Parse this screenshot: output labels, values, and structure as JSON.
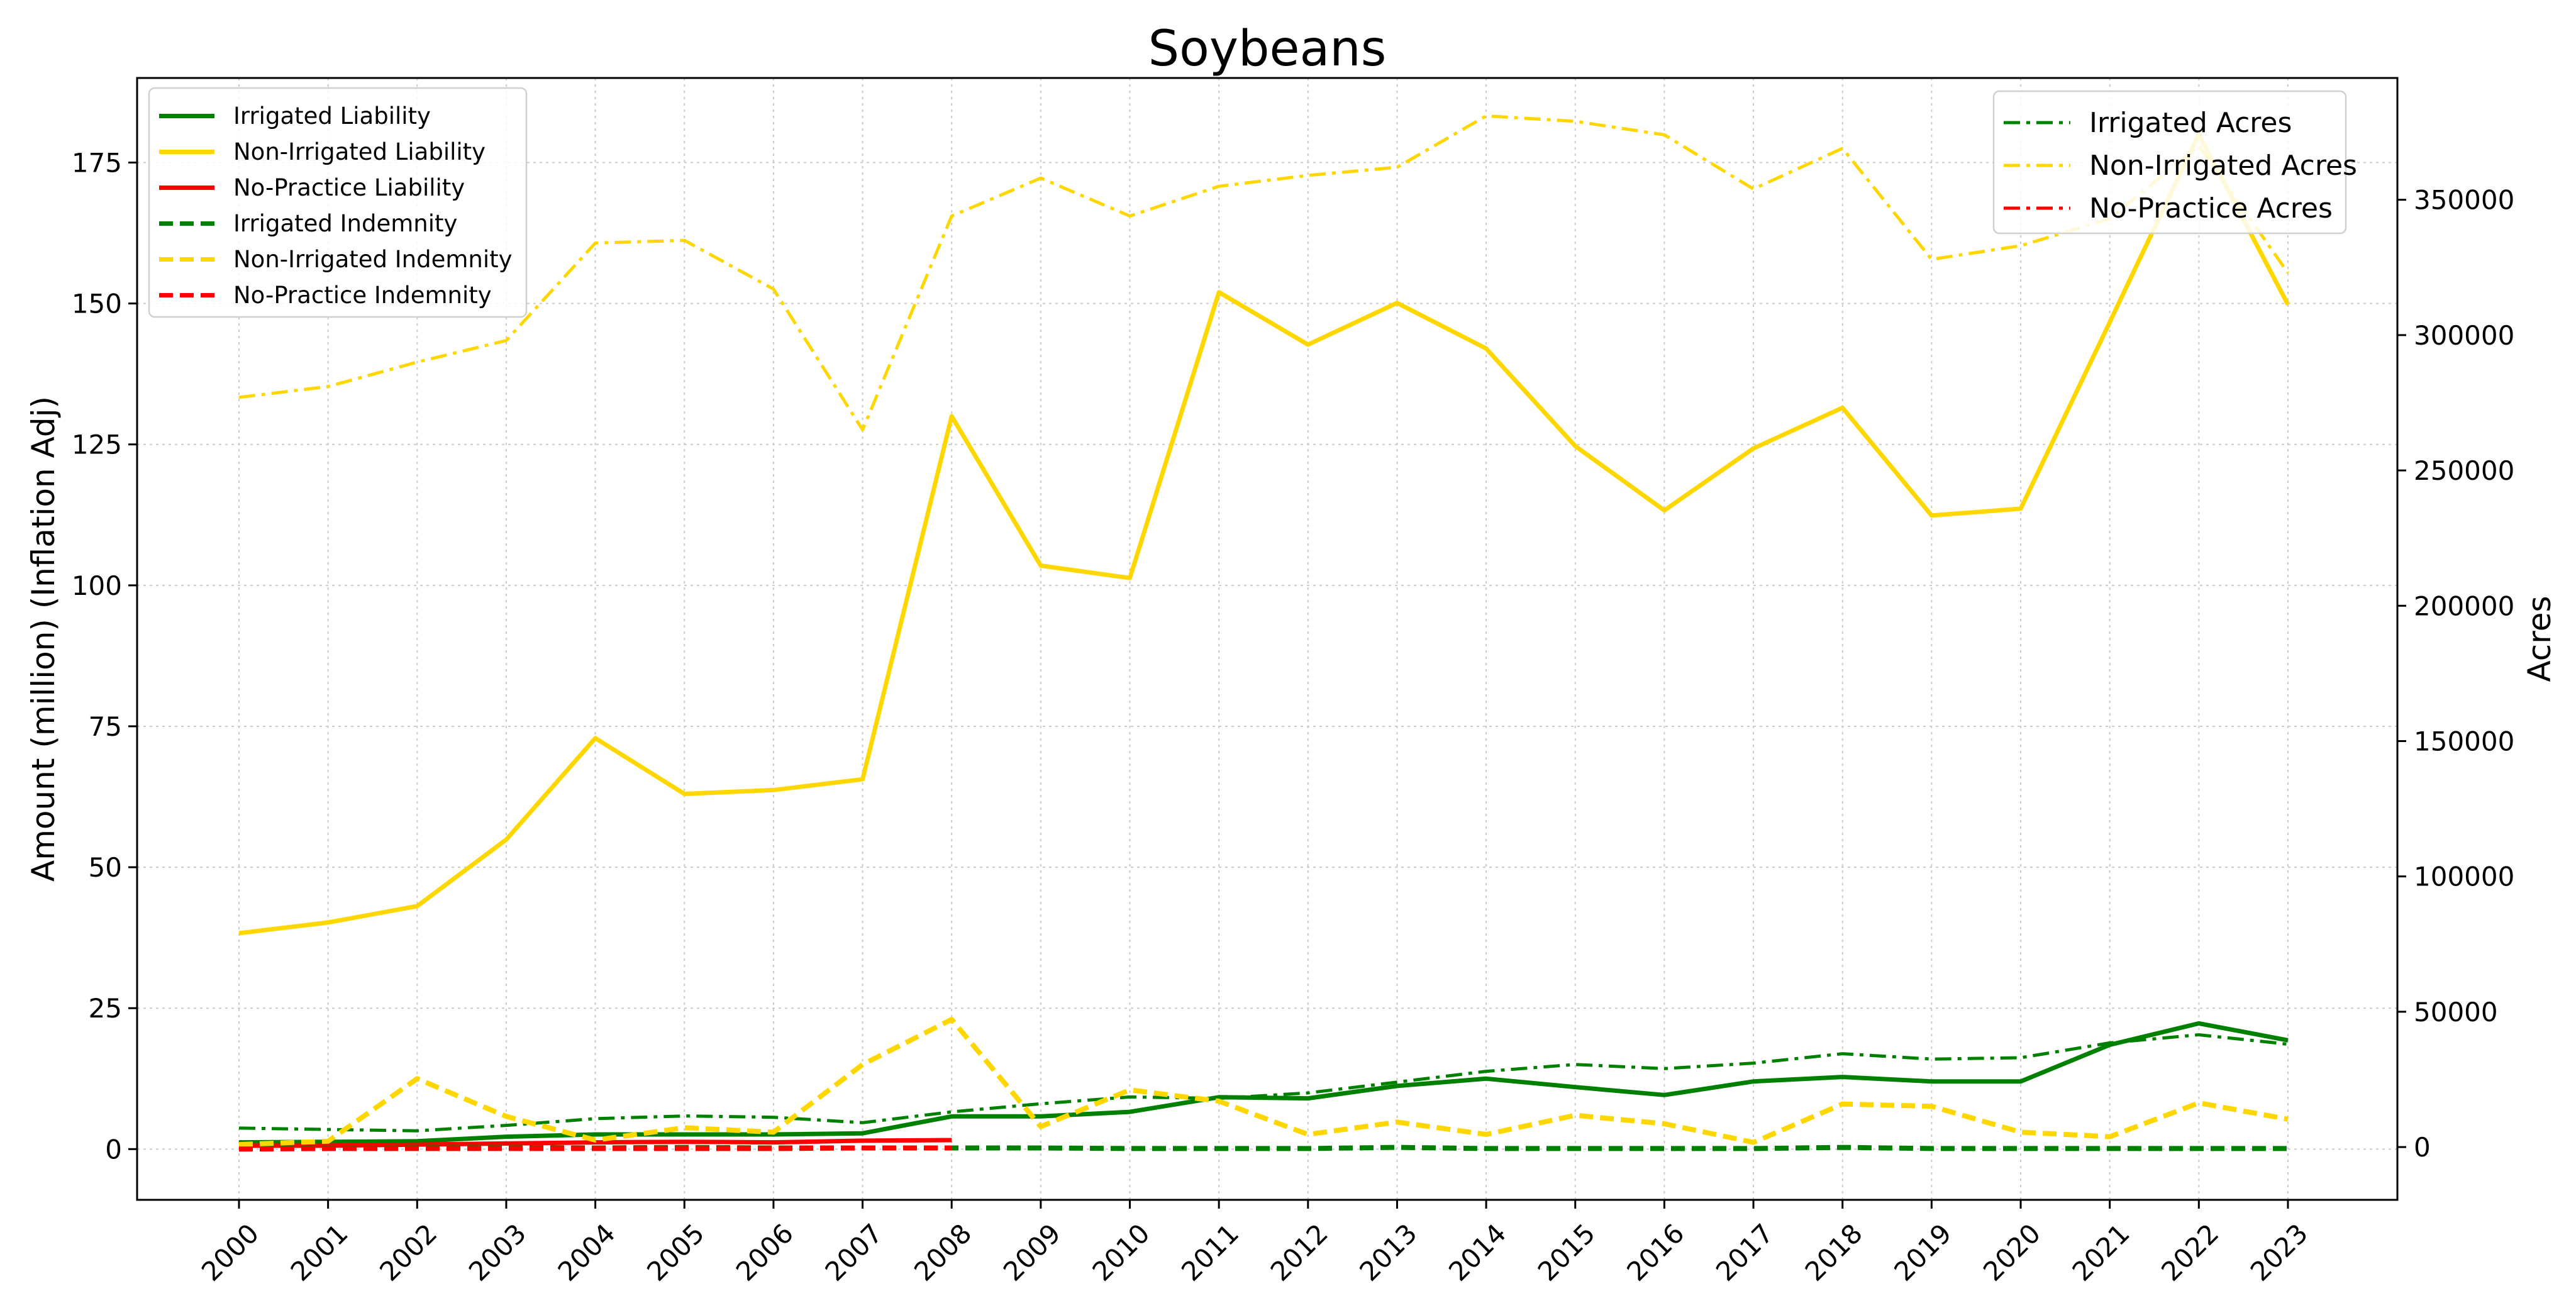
{
  "chart_data": {
    "type": "line",
    "title": "Soybeans",
    "ylabel_left": "Amount (million) (Inflation Adj)",
    "ylabel_right": "Acres",
    "xlabel": "",
    "ylim_left": [
      -9,
      190
    ],
    "ylim_right": [
      -19500,
      395000
    ],
    "x_ticks": [
      2000,
      2001,
      2002,
      2003,
      2004,
      2005,
      2006,
      2007,
      2008,
      2009,
      2010,
      2011,
      2012,
      2013,
      2014,
      2015,
      2016,
      2017,
      2018,
      2019,
      2020,
      2021,
      2022,
      2023
    ],
    "y_ticks_left": [
      0,
      25,
      50,
      75,
      100,
      125,
      150,
      175
    ],
    "y_ticks_right": [
      0,
      50000,
      100000,
      150000,
      200000,
      250000,
      300000,
      350000
    ],
    "grid": true,
    "legend_left_placement": "upper-left",
    "legend_right_placement": "upper-right",
    "series_left": [
      {
        "name": "Irrigated Liability",
        "color": "#008000",
        "dash": "solid",
        "x": [
          2000,
          2001,
          2002,
          2003,
          2004,
          2005,
          2006,
          2007,
          2008,
          2009,
          2010,
          2011,
          2012,
          2013,
          2014,
          2015,
          2016,
          2017,
          2018,
          2019,
          2020,
          2021,
          2022,
          2023
        ],
        "values": [
          1.2,
          1.3,
          1.4,
          2.2,
          2.6,
          2.6,
          2.6,
          2.8,
          5.8,
          5.8,
          6.6,
          9.2,
          9.0,
          11.2,
          12.5,
          11.0,
          9.6,
          12.0,
          12.8,
          12.0,
          12.0,
          18.5,
          22.3,
          19.3
        ]
      },
      {
        "name": "Non-Irrigated Liability",
        "color": "#FFD700",
        "dash": "solid",
        "x": [
          2000,
          2001,
          2002,
          2003,
          2004,
          2005,
          2006,
          2007,
          2008,
          2009,
          2010,
          2011,
          2012,
          2013,
          2014,
          2015,
          2016,
          2017,
          2018,
          2019,
          2020,
          2021,
          2022,
          2023
        ],
        "values": [
          38.3,
          40.2,
          43.1,
          54.9,
          72.9,
          63.0,
          63.7,
          65.6,
          130.0,
          103.5,
          101.3,
          152.0,
          142.7,
          150.1,
          142.0,
          124.7,
          113.3,
          124.3,
          131.5,
          112.4,
          113.6,
          146.7,
          180.0,
          149.8
        ]
      },
      {
        "name": "No-Practice Liability",
        "color": "#FF0000",
        "dash": "solid",
        "x": [
          2000,
          2001,
          2002,
          2003,
          2004,
          2005,
          2006,
          2007,
          2008
        ],
        "values": [
          0.6,
          0.6,
          0.8,
          1.0,
          1.2,
          1.3,
          1.2,
          1.5,
          1.6
        ]
      },
      {
        "name": "Irrigated Indemnity",
        "color": "#008000",
        "dash": "dashed",
        "x": [
          2000,
          2001,
          2002,
          2003,
          2004,
          2005,
          2006,
          2007,
          2008,
          2009,
          2010,
          2011,
          2012,
          2013,
          2014,
          2015,
          2016,
          2017,
          2018,
          2019,
          2020,
          2021,
          2022,
          2023
        ],
        "values": [
          0.1,
          0.2,
          0.3,
          0.3,
          0.2,
          0.3,
          0.2,
          0.2,
          0.2,
          0.2,
          0.1,
          0.1,
          0.1,
          0.3,
          0.1,
          0.1,
          0.1,
          0.1,
          0.3,
          0.1,
          0.1,
          0.1,
          0.1,
          0.1
        ]
      },
      {
        "name": "Non-Irrigated Indemnity",
        "color": "#FFD700",
        "dash": "dashed",
        "x": [
          2000,
          2001,
          2002,
          2003,
          2004,
          2005,
          2006,
          2007,
          2008,
          2009,
          2010,
          2011,
          2012,
          2013,
          2014,
          2015,
          2016,
          2017,
          2018,
          2019,
          2020,
          2021,
          2022,
          2023
        ],
        "values": [
          0.8,
          1.4,
          12.5,
          5.8,
          1.6,
          3.8,
          3.0,
          15.0,
          23.0,
          4.0,
          10.5,
          8.5,
          2.6,
          4.8,
          2.6,
          6.0,
          4.5,
          1.2,
          8.0,
          7.6,
          3.0,
          2.2,
          8.2,
          5.3
        ]
      },
      {
        "name": "No-Practice Indemnity",
        "color": "#FF0000",
        "dash": "dashed",
        "x": [
          2000,
          2001,
          2002,
          2003,
          2004,
          2005,
          2006,
          2007,
          2008
        ],
        "values": [
          0.0,
          0.1,
          0.1,
          0.1,
          0.1,
          0.1,
          0.1,
          0.2,
          0.2
        ]
      }
    ],
    "series_right": [
      {
        "name": "Irrigated Acres",
        "color": "#008000",
        "dash": "dashdot",
        "x": [
          2000,
          2001,
          2002,
          2003,
          2004,
          2005,
          2006,
          2007,
          2008,
          2009,
          2010,
          2011,
          2012,
          2013,
          2014,
          2015,
          2016,
          2017,
          2018,
          2019,
          2020,
          2021,
          2022,
          2023
        ],
        "values": [
          7000,
          6500,
          6000,
          8000,
          10500,
          11500,
          11000,
          9000,
          13000,
          16000,
          18500,
          18000,
          20000,
          24000,
          28000,
          30500,
          29000,
          31000,
          34500,
          32500,
          33000,
          38500,
          41500,
          38000
        ]
      },
      {
        "name": "Non-Irrigated Acres",
        "color": "#FFD700",
        "dash": "dashdot",
        "x": [
          2000,
          2001,
          2002,
          2003,
          2004,
          2005,
          2006,
          2007,
          2008,
          2009,
          2010,
          2011,
          2012,
          2013,
          2014,
          2015,
          2016,
          2017,
          2018,
          2019,
          2020,
          2021,
          2022,
          2023
        ],
        "values": [
          277000,
          281000,
          290000,
          298000,
          334000,
          335000,
          317000,
          265000,
          344000,
          358000,
          344000,
          355000,
          359000,
          362000,
          381000,
          379000,
          374000,
          354000,
          369000,
          328000,
          333000,
          343000,
          370000,
          323000
        ]
      },
      {
        "name": "No-Practice Acres",
        "color": "#FF0000",
        "dash": "dashdot",
        "x": [],
        "values": []
      }
    ]
  }
}
